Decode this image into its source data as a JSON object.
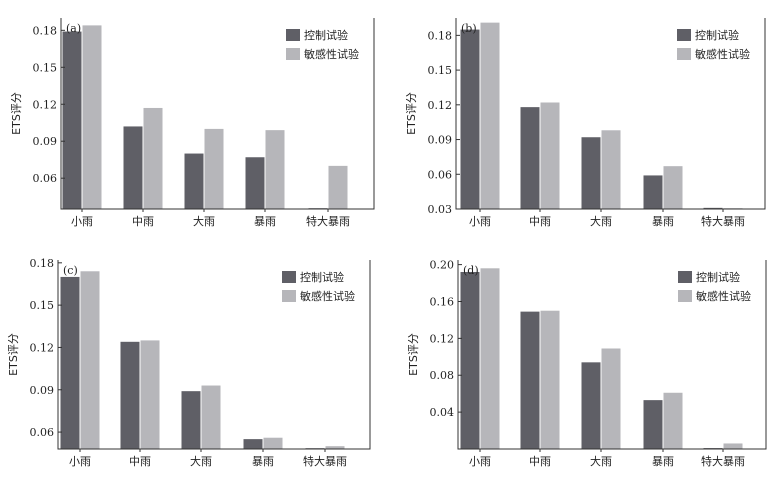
{
  "chart_data": [
    {
      "type": "bar",
      "panel_label": "(a)",
      "ylabel": "ETS评分",
      "categories": [
        "小雨",
        "中雨",
        "大雨",
        "暴雨",
        "特大暴雨"
      ],
      "ylim": [
        0.035,
        0.19
      ],
      "yticks": [
        0.06,
        0.09,
        0.12,
        0.15,
        0.18
      ],
      "ytick_labels": [
        "0.06",
        "0.09",
        "0.12",
        "0.15",
        "0.18"
      ],
      "legend_position": "top-right",
      "series": [
        {
          "name": "控制试验",
          "color": "#5f5f66",
          "values": [
            0.179,
            0.102,
            0.08,
            0.077,
            0.035
          ]
        },
        {
          "name": "敏感性试验",
          "color": "#b6b6ba",
          "values": [
            0.184,
            0.117,
            0.1,
            0.099,
            0.07
          ]
        }
      ]
    },
    {
      "type": "bar",
      "panel_label": "(b)",
      "ylabel": "ETS评分",
      "categories": [
        "小雨",
        "中雨",
        "大雨",
        "暴雨",
        "特大暴雨"
      ],
      "ylim": [
        0.03,
        0.195
      ],
      "yticks": [
        0.03,
        0.06,
        0.09,
        0.12,
        0.15,
        0.18
      ],
      "ytick_labels": [
        "0.03",
        "0.06",
        "0.09",
        "0.12",
        "0.15",
        "0.18"
      ],
      "legend_position": "top-right",
      "series": [
        {
          "name": "控制试验",
          "color": "#5f5f66",
          "values": [
            0.185,
            0.118,
            0.092,
            0.059,
            0.031
          ]
        },
        {
          "name": "敏感性试验",
          "color": "#b6b6ba",
          "values": [
            0.191,
            0.122,
            0.098,
            0.067,
            0.03
          ]
        }
      ]
    },
    {
      "type": "bar",
      "panel_label": "(c)",
      "ylabel": "ETS评分",
      "categories": [
        "小雨",
        "中雨",
        "大雨",
        "暴雨",
        "特大暴雨"
      ],
      "ylim": [
        0.048,
        0.182
      ],
      "yticks": [
        0.06,
        0.09,
        0.12,
        0.15,
        0.18
      ],
      "ytick_labels": [
        "0.06",
        "0.09",
        "0.12",
        "0.15",
        "0.18"
      ],
      "legend_position": "top-right",
      "series": [
        {
          "name": "控制试验",
          "color": "#5f5f66",
          "values": [
            0.17,
            0.124,
            0.089,
            0.055,
            0.048
          ]
        },
        {
          "name": "敏感性试验",
          "color": "#b6b6ba",
          "values": [
            0.174,
            0.125,
            0.093,
            0.056,
            0.05
          ]
        }
      ]
    },
    {
      "type": "bar",
      "panel_label": "(d)",
      "ylabel": "ETS评分",
      "categories": [
        "小雨",
        "中雨",
        "大雨",
        "暴雨",
        "特大暴雨"
      ],
      "ylim": [
        0.0,
        0.205
      ],
      "yticks": [
        0.04,
        0.08,
        0.12,
        0.16,
        0.2
      ],
      "ytick_labels": [
        "0.04",
        "0.08",
        "0.12",
        "0.16",
        "0.20"
      ],
      "legend_position": "top-right",
      "series": [
        {
          "name": "控制试验",
          "color": "#5f5f66",
          "values": [
            0.192,
            0.149,
            0.094,
            0.053,
            0.001
          ]
        },
        {
          "name": "敏感性试验",
          "color": "#b6b6ba",
          "values": [
            0.196,
            0.15,
            0.109,
            0.061,
            0.006
          ]
        }
      ]
    }
  ]
}
